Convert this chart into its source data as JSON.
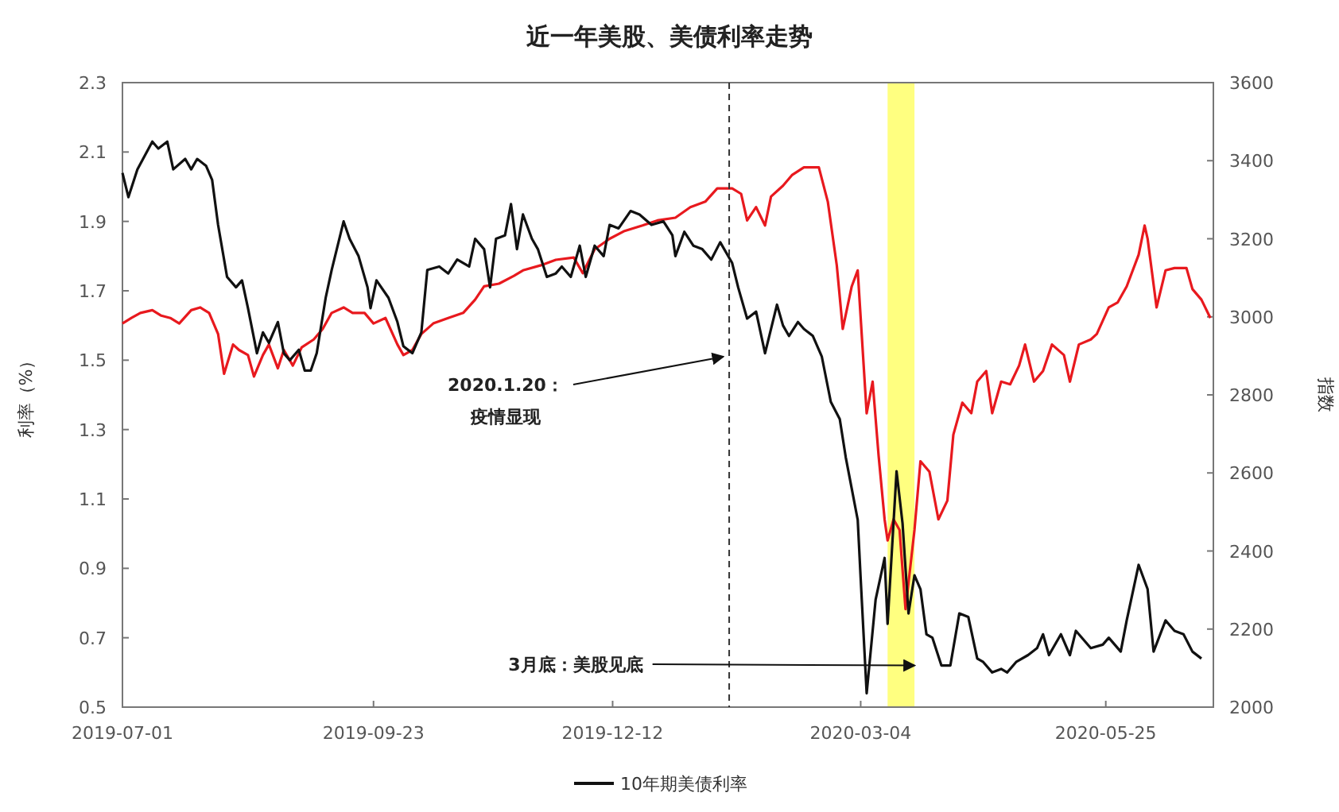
{
  "chart_data": {
    "type": "line",
    "title": "近一年美股、美债利率走势",
    "ylabel": "利率（%）",
    "y2label": "指数",
    "xlim": [
      "2019-07-01",
      "2020-06-30"
    ],
    "xticks": [
      "2019-07-01",
      "2019-09-23",
      "2019-12-12",
      "2020-03-04",
      "2020-05-25"
    ],
    "ylim": [
      0.5,
      2.3
    ],
    "yticks": [
      0.5,
      0.7,
      0.9,
      1.1,
      1.3,
      1.5,
      1.7,
      1.9,
      2.1,
      2.3
    ],
    "y2lim": [
      2000,
      3600
    ],
    "y2ticks": [
      2000,
      2200,
      2400,
      2600,
      2800,
      3000,
      3200,
      3400,
      3600
    ],
    "legend": "bottom",
    "ref_lines": [
      {
        "axis": "x",
        "value": "2020-01-20",
        "color": "#333333",
        "line_style": "dashed"
      }
    ],
    "bands": [
      {
        "axis": "x",
        "from": "2020-03-13",
        "to": "2020-03-22",
        "color": "#ffff80"
      }
    ],
    "annotations": [
      {
        "text": "2020.1.20：",
        "x": "2020-01-18",
        "y": 1.51
      },
      "疫情显现",
      {
        "text": "3月底：美股见底",
        "x": "2020-03-22",
        "y": 0.62
      }
    ],
    "series": [
      {
        "axis": "y2",
        "color": "#e8191e",
        "x": [
          "2019-07-01",
          "2019-07-04",
          "2019-07-07",
          "2019-07-11",
          "2019-07-14",
          "2019-07-17",
          "2019-07-20",
          "2019-07-24",
          "2019-07-27",
          "2019-07-30",
          "2019-08-02",
          "2019-08-04",
          "2019-08-07",
          "2019-08-09",
          "2019-08-12",
          "2019-08-14",
          "2019-08-17",
          "2019-08-19",
          "2019-08-22",
          "2019-08-24",
          "2019-08-27",
          "2019-08-30",
          "2019-09-03",
          "2019-09-06",
          "2019-09-09",
          "2019-09-13",
          "2019-09-16",
          "2019-09-20",
          "2019-09-23",
          "2019-09-27",
          "2019-10-01",
          "2019-10-03",
          "2019-10-06",
          "2019-10-09",
          "2019-10-13",
          "2019-10-18",
          "2019-10-23",
          "2019-10-27",
          "2019-10-30",
          "2019-11-04",
          "2019-11-09",
          "2019-11-12",
          "2019-11-18",
          "2019-11-23",
          "2019-11-29",
          "2019-12-02",
          "2019-12-06",
          "2019-12-11",
          "2019-12-16",
          "2019-12-22",
          "2019-12-27",
          "2020-01-02",
          "2020-01-07",
          "2020-01-12",
          "2020-01-16",
          "2020-01-21",
          "2020-01-24",
          "2020-01-26",
          "2020-01-29",
          "2020-02-01",
          "2020-02-03",
          "2020-02-07",
          "2020-02-10",
          "2020-02-14",
          "2020-02-16",
          "2020-02-19",
          "2020-02-22",
          "2020-02-25",
          "2020-02-27",
          "2020-03-01",
          "2020-03-03",
          "2020-03-06",
          "2020-03-08",
          "2020-03-10",
          "2020-03-12",
          "2020-03-13",
          "2020-03-15",
          "2020-03-17",
          "2020-03-19",
          "2020-03-22",
          "2020-03-24",
          "2020-03-27",
          "2020-03-30",
          "2020-04-02",
          "2020-04-04",
          "2020-04-07",
          "2020-04-10",
          "2020-04-12",
          "2020-04-15",
          "2020-04-17",
          "2020-04-20",
          "2020-04-23",
          "2020-04-26",
          "2020-04-28",
          "2020-05-01",
          "2020-05-04",
          "2020-05-07",
          "2020-05-11",
          "2020-05-13",
          "2020-05-16",
          "2020-05-20",
          "2020-05-22",
          "2020-05-26",
          "2020-05-29",
          "2020-06-01",
          "2020-06-05",
          "2020-06-07",
          "2020-06-08",
          "2020-06-11",
          "2020-06-14",
          "2020-06-17",
          "2020-06-21",
          "2020-06-23",
          "2020-06-26",
          "2020-06-29"
        ],
        "values": [
          2983,
          2997,
          3010,
          3017,
          3003,
          2997,
          2983,
          3017,
          3024,
          3010,
          2956,
          2854,
          2929,
          2915,
          2902,
          2847,
          2902,
          2929,
          2868,
          2915,
          2875,
          2922,
          2942,
          2969,
          3010,
          3024,
          3010,
          3010,
          2983,
          2997,
          2929,
          2902,
          2915,
          2956,
          2983,
          2997,
          3010,
          3044,
          3078,
          3085,
          3105,
          3119,
          3132,
          3146,
          3152,
          3112,
          3173,
          3200,
          3220,
          3234,
          3247,
          3254,
          3281,
          3295,
          3329,
          3329,
          3315,
          3247,
          3281,
          3234,
          3308,
          3336,
          3363,
          3383,
          3383,
          3383,
          3295,
          3132,
          2969,
          3078,
          3119,
          2753,
          2834,
          2644,
          2481,
          2427,
          2481,
          2454,
          2251,
          2454,
          2630,
          2603,
          2481,
          2529,
          2698,
          2780,
          2753,
          2834,
          2861,
          2753,
          2834,
          2827,
          2875,
          2929,
          2834,
          2861,
          2929,
          2902,
          2834,
          2929,
          2942,
          2956,
          3024,
          3037,
          3078,
          3159,
          3234,
          3200,
          3024,
          3119,
          3125,
          3125,
          3071,
          3044,
          2997
        ]
      },
      {
        "axis": "y",
        "name": "10年期美债利率",
        "color": "#111111",
        "x": [
          "2019-07-01",
          "2019-07-03",
          "2019-07-06",
          "2019-07-11",
          "2019-07-13",
          "2019-07-16",
          "2019-07-18",
          "2019-07-22",
          "2019-07-24",
          "2019-07-26",
          "2019-07-29",
          "2019-07-31",
          "2019-08-02",
          "2019-08-05",
          "2019-08-08",
          "2019-08-10",
          "2019-08-12",
          "2019-08-15",
          "2019-08-17",
          "2019-08-19",
          "2019-08-22",
          "2019-08-24",
          "2019-08-26",
          "2019-08-29",
          "2019-08-31",
          "2019-09-02",
          "2019-09-04",
          "2019-09-07",
          "2019-09-09",
          "2019-09-13",
          "2019-09-15",
          "2019-09-18",
          "2019-09-21",
          "2019-09-22",
          "2019-09-24",
          "2019-09-28",
          "2019-10-01",
          "2019-10-03",
          "2019-10-06",
          "2019-10-09",
          "2019-10-11",
          "2019-10-15",
          "2019-10-18",
          "2019-10-21",
          "2019-10-25",
          "2019-10-27",
          "2019-10-30",
          "2019-11-01",
          "2019-11-03",
          "2019-11-06",
          "2019-11-08",
          "2019-11-10",
          "2019-11-12",
          "2019-11-15",
          "2019-11-17",
          "2019-11-20",
          "2019-11-23",
          "2019-11-25",
          "2019-11-28",
          "2019-12-01",
          "2019-12-03",
          "2019-12-06",
          "2019-12-09",
          "2019-12-11",
          "2019-12-14",
          "2019-12-18",
          "2019-12-21",
          "2019-12-25",
          "2019-12-29",
          "2020-01-01",
          "2020-01-02",
          "2020-01-05",
          "2020-01-08",
          "2020-01-11",
          "2020-01-14",
          "2020-01-17",
          "2020-01-21",
          "2020-01-23",
          "2020-01-26",
          "2020-01-29",
          "2020-02-01",
          "2020-02-05",
          "2020-02-07",
          "2020-02-09",
          "2020-02-12",
          "2020-02-14",
          "2020-02-17",
          "2020-02-20",
          "2020-02-23",
          "2020-02-26",
          "2020-02-28",
          "2020-03-03",
          "2020-03-04",
          "2020-03-06",
          "2020-03-09",
          "2020-03-12",
          "2020-03-13",
          "2020-03-16",
          "2020-03-18",
          "2020-03-20",
          "2020-03-22",
          "2020-03-24",
          "2020-03-26",
          "2020-03-28",
          "2020-03-31",
          "2020-04-03",
          "2020-04-06",
          "2020-04-09",
          "2020-04-12",
          "2020-04-14",
          "2020-04-17",
          "2020-04-20",
          "2020-04-22",
          "2020-04-25",
          "2020-04-29",
          "2020-05-02",
          "2020-05-04",
          "2020-05-06",
          "2020-05-10",
          "2020-05-13",
          "2020-05-15",
          "2020-05-20",
          "2020-05-24",
          "2020-05-26",
          "2020-05-30",
          "2020-06-01",
          "2020-06-05",
          "2020-06-08",
          "2020-06-10",
          "2020-06-14",
          "2020-06-17",
          "2020-06-20",
          "2020-06-23",
          "2020-06-26"
        ],
        "values": [
          2.04,
          1.97,
          2.05,
          2.13,
          2.11,
          2.13,
          2.05,
          2.08,
          2.05,
          2.08,
          2.06,
          2.02,
          1.89,
          1.74,
          1.71,
          1.73,
          1.65,
          1.52,
          1.58,
          1.55,
          1.61,
          1.52,
          1.5,
          1.53,
          1.47,
          1.47,
          1.52,
          1.68,
          1.76,
          1.9,
          1.85,
          1.8,
          1.71,
          1.65,
          1.73,
          1.68,
          1.61,
          1.54,
          1.52,
          1.58,
          1.76,
          1.77,
          1.75,
          1.79,
          1.77,
          1.85,
          1.82,
          1.71,
          1.85,
          1.86,
          1.95,
          1.82,
          1.92,
          1.85,
          1.82,
          1.74,
          1.75,
          1.77,
          1.74,
          1.83,
          1.74,
          1.83,
          1.8,
          1.89,
          1.88,
          1.93,
          1.92,
          1.89,
          1.9,
          1.86,
          1.8,
          1.87,
          1.83,
          1.82,
          1.79,
          1.84,
          1.78,
          1.71,
          1.62,
          1.64,
          1.52,
          1.66,
          1.6,
          1.57,
          1.61,
          1.59,
          1.57,
          1.51,
          1.38,
          1.33,
          1.22,
          1.04,
          0.87,
          0.54,
          0.81,
          0.93,
          0.74,
          1.18,
          1.03,
          0.77,
          0.88,
          0.84,
          0.71,
          0.7,
          0.62,
          0.62,
          0.77,
          0.76,
          0.64,
          0.63,
          0.6,
          0.61,
          0.6,
          0.63,
          0.65,
          0.67,
          0.71,
          0.65,
          0.71,
          0.65,
          0.72,
          0.67,
          0.68,
          0.7,
          0.66,
          0.75,
          0.91,
          0.84,
          0.66,
          0.75,
          0.72,
          0.71,
          0.66,
          0.64
        ]
      }
    ]
  }
}
